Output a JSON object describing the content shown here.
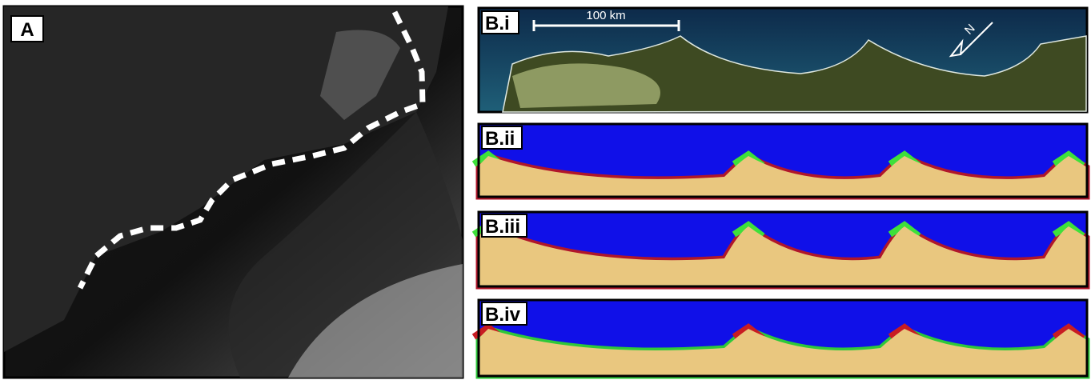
{
  "panel_a": {
    "label": "A"
  },
  "panel_b": [
    {
      "label": "B.i",
      "scale_bar": "100 km",
      "north": "N"
    },
    {
      "label": "B.ii"
    },
    {
      "label": "B.iii"
    },
    {
      "label": "B.iv"
    }
  ]
}
